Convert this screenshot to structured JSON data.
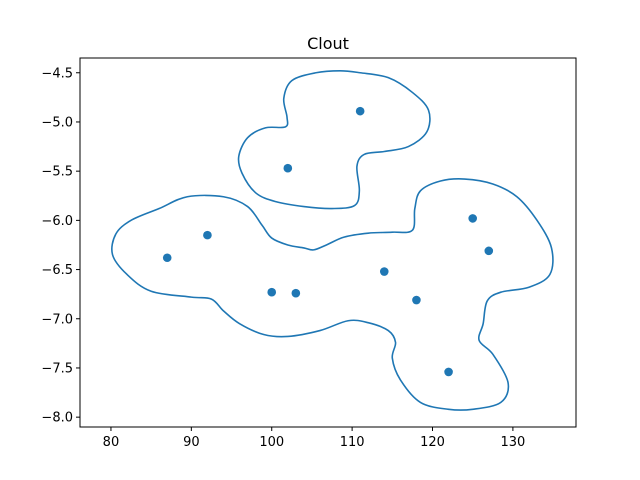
{
  "chart_data": {
    "type": "scatter",
    "title": "Clout",
    "xlabel": "",
    "ylabel": "",
    "xlim": [
      76.15,
      137.85
    ],
    "ylim": [
      -8.1,
      -4.35
    ],
    "xticks": [
      80,
      90,
      100,
      110,
      120,
      130
    ],
    "yticks": [
      -8.0,
      -7.5,
      -7.0,
      -6.5,
      -6.0,
      -5.5,
      -5.0,
      -4.5
    ],
    "xtick_labels": [
      "80",
      "90",
      "100",
      "110",
      "120",
      "130"
    ],
    "ytick_labels": [
      "−8.0",
      "−7.5",
      "−7.0",
      "−6.5",
      "−6.0",
      "−5.5",
      "−5.0",
      "−4.5"
    ],
    "grid": false,
    "series": [
      {
        "color": "#1f77b4",
        "points": [
          [
            111,
            -4.89
          ],
          [
            102,
            -5.47
          ],
          [
            87,
            -6.38
          ],
          [
            92,
            -6.15
          ],
          [
            100,
            -6.73
          ],
          [
            103,
            -6.74
          ],
          [
            114,
            -6.52
          ],
          [
            118,
            -6.81
          ],
          [
            125,
            -5.98
          ],
          [
            127,
            -6.31
          ],
          [
            122,
            -7.54
          ]
        ]
      }
    ],
    "contours": [
      {
        "color": "#1f77b4",
        "closed": true,
        "path": [
          [
            111.0,
            -4.5
          ],
          [
            114.5,
            -4.55
          ],
          [
            117.5,
            -4.7
          ],
          [
            119.5,
            -4.88
          ],
          [
            119.3,
            -5.1
          ],
          [
            117.0,
            -5.25
          ],
          [
            114.0,
            -5.3
          ],
          [
            111.5,
            -5.33
          ],
          [
            110.6,
            -5.45
          ],
          [
            110.9,
            -5.7
          ],
          [
            110.3,
            -5.85
          ],
          [
            107.5,
            -5.88
          ],
          [
            104.0,
            -5.86
          ],
          [
            100.5,
            -5.81
          ],
          [
            98.0,
            -5.72
          ],
          [
            96.3,
            -5.52
          ],
          [
            95.9,
            -5.35
          ],
          [
            97.0,
            -5.16
          ],
          [
            99.2,
            -5.06
          ],
          [
            101.7,
            -5.05
          ],
          [
            101.9,
            -4.95
          ],
          [
            101.5,
            -4.76
          ],
          [
            102.5,
            -4.58
          ],
          [
            105.5,
            -4.5
          ],
          [
            108.5,
            -4.48
          ]
        ]
      },
      {
        "color": "#1f77b4",
        "closed": true,
        "path": [
          [
            89.5,
            -5.76
          ],
          [
            94.0,
            -5.76
          ],
          [
            97.0,
            -5.86
          ],
          [
            98.8,
            -6.05
          ],
          [
            100.0,
            -6.18
          ],
          [
            102.0,
            -6.25
          ],
          [
            104.0,
            -6.28
          ],
          [
            105.2,
            -6.3
          ],
          [
            106.8,
            -6.25
          ],
          [
            109.0,
            -6.17
          ],
          [
            112.0,
            -6.13
          ],
          [
            115.0,
            -6.12
          ],
          [
            117.5,
            -6.1
          ],
          [
            117.8,
            -5.88
          ],
          [
            118.5,
            -5.7
          ],
          [
            121.0,
            -5.6
          ],
          [
            124.0,
            -5.58
          ],
          [
            127.5,
            -5.63
          ],
          [
            130.5,
            -5.76
          ],
          [
            133.0,
            -6.0
          ],
          [
            134.8,
            -6.28
          ],
          [
            134.6,
            -6.55
          ],
          [
            132.0,
            -6.68
          ],
          [
            128.5,
            -6.73
          ],
          [
            126.8,
            -6.82
          ],
          [
            126.3,
            -7.05
          ],
          [
            125.8,
            -7.22
          ],
          [
            127.5,
            -7.36
          ],
          [
            129.4,
            -7.65
          ],
          [
            128.5,
            -7.85
          ],
          [
            125.0,
            -7.92
          ],
          [
            122.0,
            -7.92
          ],
          [
            118.5,
            -7.85
          ],
          [
            116.0,
            -7.62
          ],
          [
            115.0,
            -7.4
          ],
          [
            115.4,
            -7.24
          ],
          [
            114.5,
            -7.12
          ],
          [
            112.0,
            -7.04
          ],
          [
            109.5,
            -7.02
          ],
          [
            106.0,
            -7.12
          ],
          [
            102.0,
            -7.18
          ],
          [
            99.0,
            -7.16
          ],
          [
            96.0,
            -7.05
          ],
          [
            94.0,
            -6.92
          ],
          [
            92.5,
            -6.8
          ],
          [
            90.0,
            -6.78
          ],
          [
            85.0,
            -6.72
          ],
          [
            82.0,
            -6.55
          ],
          [
            80.2,
            -6.35
          ],
          [
            80.6,
            -6.14
          ],
          [
            82.5,
            -6.0
          ],
          [
            86.0,
            -5.88
          ]
        ]
      }
    ]
  }
}
